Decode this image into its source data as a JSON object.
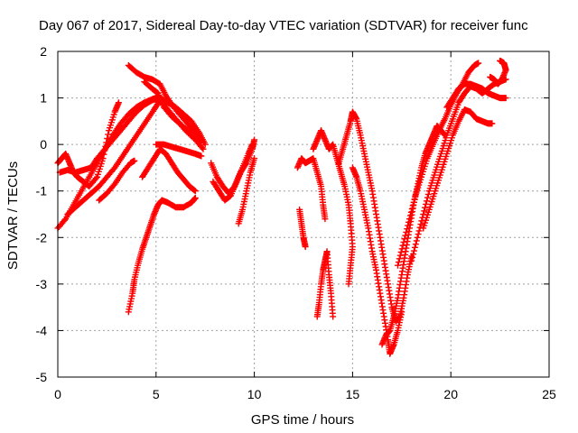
{
  "chart_data": {
    "type": "scatter",
    "title": "Day 067 of 2017, Sidereal Day-to-day VTEC variation (SDTVAR) for receiver func",
    "xlabel": "GPS time / hours",
    "ylabel": "SDTVAR / TECUs",
    "xlim": [
      0,
      25
    ],
    "ylim": [
      -5,
      2
    ],
    "xticks": [
      "0",
      "5",
      "10",
      "15",
      "20",
      "25"
    ],
    "yticks": [
      "-5",
      "-4",
      "-3",
      "-2",
      "-1",
      "0",
      "1",
      "2"
    ],
    "grid": true,
    "marker": "plus",
    "color": "#ff0000",
    "series": [
      {
        "points": [
          [
            0.0,
            -1.8
          ],
          [
            0.4,
            -1.6
          ],
          [
            0.8,
            -1.3
          ],
          [
            1.2,
            -1.0
          ],
          [
            1.6,
            -0.7
          ],
          [
            2.0,
            -0.4
          ],
          [
            2.4,
            -0.1
          ],
          [
            2.8,
            0.2
          ],
          [
            3.2,
            0.45
          ],
          [
            3.6,
            0.65
          ],
          [
            4.0,
            0.8
          ],
          [
            4.4,
            0.9
          ],
          [
            4.8,
            0.97
          ],
          [
            5.0,
            1.0
          ],
          [
            5.3,
            0.9
          ],
          [
            5.7,
            0.7
          ],
          [
            6.1,
            0.5
          ],
          [
            6.5,
            0.3
          ],
          [
            7.0,
            0.1
          ],
          [
            7.4,
            -0.1
          ]
        ]
      },
      {
        "points": [
          [
            0.0,
            -0.4
          ],
          [
            0.2,
            -0.3
          ],
          [
            0.4,
            -0.2
          ],
          [
            0.6,
            -0.4
          ],
          [
            0.8,
            -0.6
          ],
          [
            1.0,
            -0.7
          ],
          [
            1.3,
            -0.8
          ],
          [
            1.6,
            -0.9
          ],
          [
            2.0,
            -0.7
          ],
          [
            2.3,
            -0.3
          ],
          [
            2.6,
            0.3
          ],
          [
            2.9,
            0.7
          ],
          [
            3.1,
            0.9
          ]
        ]
      },
      {
        "points": [
          [
            0.1,
            -0.6
          ],
          [
            0.5,
            -0.55
          ],
          [
            0.9,
            -0.6
          ],
          [
            1.3,
            -0.55
          ],
          [
            1.7,
            -0.5
          ],
          [
            2.0,
            -0.3
          ],
          [
            2.4,
            -0.1
          ],
          [
            2.8,
            0.1
          ],
          [
            3.2,
            0.3
          ],
          [
            3.6,
            0.5
          ],
          [
            4.0,
            0.7
          ],
          [
            4.4,
            0.85
          ],
          [
            4.8,
            0.95
          ],
          [
            5.2,
            1.0
          ],
          [
            5.6,
            0.9
          ],
          [
            6.0,
            0.8
          ],
          [
            6.4,
            0.65
          ],
          [
            6.8,
            0.5
          ],
          [
            7.2,
            0.25
          ],
          [
            7.5,
            0.0
          ]
        ]
      },
      {
        "points": [
          [
            0.5,
            -1.5
          ],
          [
            0.9,
            -1.35
          ],
          [
            1.3,
            -1.2
          ],
          [
            1.7,
            -1.05
          ],
          [
            2.1,
            -0.9
          ],
          [
            2.5,
            -0.7
          ],
          [
            2.9,
            -0.5
          ],
          [
            3.3,
            -0.25
          ],
          [
            3.7,
            0.0
          ],
          [
            4.1,
            0.25
          ],
          [
            4.5,
            0.5
          ],
          [
            4.9,
            0.75
          ],
          [
            5.2,
            0.95
          ]
        ]
      },
      {
        "points": [
          [
            3.6,
            1.7
          ],
          [
            4.0,
            1.55
          ],
          [
            4.4,
            1.45
          ],
          [
            4.8,
            1.4
          ],
          [
            5.2,
            1.3
          ],
          [
            5.5,
            1.05
          ],
          [
            5.9,
            0.8
          ],
          [
            6.3,
            0.6
          ],
          [
            6.7,
            0.4
          ],
          [
            7.0,
            0.25
          ],
          [
            7.3,
            0.05
          ]
        ]
      },
      {
        "points": [
          [
            4.4,
            1.35
          ],
          [
            4.8,
            1.2
          ],
          [
            5.1,
            1.1
          ],
          [
            5.4,
            0.8
          ],
          [
            5.8,
            0.6
          ],
          [
            6.2,
            0.45
          ],
          [
            6.6,
            0.3
          ],
          [
            7.0,
            0.1
          ]
        ]
      },
      {
        "points": [
          [
            5.0,
            0.0
          ],
          [
            5.4,
            0.0
          ],
          [
            5.8,
            -0.05
          ],
          [
            6.2,
            -0.1
          ],
          [
            6.6,
            -0.15
          ],
          [
            7.0,
            -0.2
          ],
          [
            7.3,
            -0.25
          ]
        ]
      },
      {
        "points": [
          [
            2.1,
            -1.2
          ],
          [
            2.5,
            -1.05
          ],
          [
            2.9,
            -0.85
          ],
          [
            3.3,
            -0.6
          ],
          [
            3.7,
            -0.4
          ],
          [
            3.9,
            -0.35
          ]
        ]
      },
      {
        "points": [
          [
            4.3,
            -0.7
          ],
          [
            4.6,
            -0.5
          ],
          [
            4.9,
            -0.3
          ],
          [
            5.2,
            -0.1
          ],
          [
            5.5,
            -0.2
          ],
          [
            5.8,
            -0.4
          ],
          [
            6.1,
            -0.6
          ],
          [
            6.4,
            -0.75
          ],
          [
            6.7,
            -0.9
          ],
          [
            7.0,
            -1.0
          ]
        ]
      },
      {
        "points": [
          [
            3.6,
            -3.6
          ],
          [
            3.8,
            -3.2
          ],
          [
            3.9,
            -2.9
          ],
          [
            4.1,
            -2.55
          ],
          [
            4.3,
            -2.25
          ],
          [
            4.5,
            -2.0
          ],
          [
            4.7,
            -1.75
          ],
          [
            4.9,
            -1.5
          ],
          [
            5.1,
            -1.3
          ],
          [
            5.3,
            -1.2
          ],
          [
            5.6,
            -1.25
          ],
          [
            6.0,
            -1.35
          ],
          [
            6.4,
            -1.35
          ],
          [
            6.8,
            -1.25
          ],
          [
            7.0,
            -1.15
          ]
        ]
      },
      {
        "points": [
          [
            7.8,
            -0.4
          ],
          [
            8.1,
            -0.7
          ],
          [
            8.4,
            -0.9
          ],
          [
            8.7,
            -1.05
          ],
          [
            9.0,
            -0.9
          ],
          [
            9.3,
            -0.6
          ],
          [
            9.6,
            -0.4
          ],
          [
            9.9,
            -0.1
          ],
          [
            10.0,
            0.1
          ]
        ]
      },
      {
        "points": [
          [
            7.9,
            -0.8
          ],
          [
            8.2,
            -1.0
          ],
          [
            8.5,
            -1.2
          ],
          [
            8.8,
            -1.1
          ],
          [
            9.1,
            -0.8
          ],
          [
            9.4,
            -0.5
          ],
          [
            9.7,
            -0.2
          ],
          [
            9.9,
            0.0
          ]
        ]
      },
      {
        "points": [
          [
            9.2,
            -1.7
          ],
          [
            9.4,
            -1.4
          ],
          [
            9.6,
            -1.0
          ],
          [
            9.8,
            -0.6
          ],
          [
            10.0,
            -0.3
          ]
        ]
      },
      {
        "points": [
          [
            12.2,
            -0.5
          ],
          [
            12.4,
            -0.3
          ],
          [
            12.6,
            -0.4
          ],
          [
            12.8,
            -0.35
          ],
          [
            13.0,
            -0.3
          ],
          [
            13.2,
            -0.6
          ],
          [
            13.4,
            -0.9
          ],
          [
            13.5,
            -1.3
          ],
          [
            13.6,
            -1.6
          ]
        ]
      },
      {
        "points": [
          [
            12.3,
            -1.4
          ],
          [
            12.4,
            -1.7
          ],
          [
            12.5,
            -2.0
          ],
          [
            12.6,
            -2.2
          ]
        ]
      },
      {
        "points": [
          [
            13.2,
            -3.7
          ],
          [
            13.3,
            -3.4
          ],
          [
            13.4,
            -3.0
          ],
          [
            13.5,
            -2.7
          ],
          [
            13.6,
            -2.5
          ],
          [
            13.7,
            -2.3
          ],
          [
            13.8,
            -2.8
          ],
          [
            13.9,
            -3.2
          ],
          [
            14.0,
            -3.7
          ]
        ]
      },
      {
        "points": [
          [
            13.0,
            -0.1
          ],
          [
            13.2,
            0.1
          ],
          [
            13.4,
            0.3
          ],
          [
            13.6,
            0.1
          ],
          [
            13.8,
            -0.1
          ],
          [
            14.0,
            0.0
          ],
          [
            14.2,
            -0.3
          ],
          [
            14.4,
            -0.6
          ],
          [
            14.6,
            -0.9
          ],
          [
            14.8,
            -1.3
          ],
          [
            14.9,
            -1.7
          ],
          [
            15.0,
            -2.2
          ],
          [
            14.9,
            -2.6
          ],
          [
            14.8,
            -3.0
          ]
        ]
      },
      {
        "points": [
          [
            14.3,
            -0.4
          ],
          [
            14.5,
            -0.1
          ],
          [
            14.7,
            0.2
          ],
          [
            14.9,
            0.5
          ],
          [
            15.0,
            0.7
          ],
          [
            15.2,
            0.55
          ],
          [
            15.4,
            0.2
          ],
          [
            15.6,
            -0.2
          ],
          [
            15.8,
            -0.6
          ],
          [
            16.0,
            -1.0
          ],
          [
            16.2,
            -1.5
          ],
          [
            16.4,
            -2.0
          ],
          [
            16.6,
            -2.5
          ],
          [
            16.8,
            -3.0
          ],
          [
            17.0,
            -3.5
          ],
          [
            17.2,
            -3.8
          ],
          [
            17.4,
            -3.7
          ],
          [
            17.6,
            -3.3
          ],
          [
            17.8,
            -2.8
          ],
          [
            18.0,
            -2.4
          ]
        ]
      },
      {
        "points": [
          [
            15.0,
            -0.5
          ],
          [
            15.2,
            -0.7
          ],
          [
            15.4,
            -1.0
          ],
          [
            15.6,
            -1.4
          ],
          [
            15.8,
            -1.8
          ],
          [
            16.0,
            -2.3
          ],
          [
            16.2,
            -2.7
          ],
          [
            16.4,
            -3.2
          ],
          [
            16.6,
            -3.7
          ],
          [
            16.8,
            -4.2
          ],
          [
            16.9,
            -4.5
          ],
          [
            17.1,
            -4.3
          ],
          [
            17.3,
            -4.0
          ],
          [
            17.5,
            -3.6
          ]
        ]
      },
      {
        "points": [
          [
            16.5,
            -4.3
          ],
          [
            16.7,
            -4.1
          ],
          [
            16.9,
            -4.0
          ],
          [
            17.1,
            -3.7
          ],
          [
            17.3,
            -3.3
          ],
          [
            17.5,
            -2.8
          ],
          [
            17.7,
            -2.3
          ],
          [
            17.9,
            -1.8
          ],
          [
            18.1,
            -1.3
          ],
          [
            18.3,
            -0.9
          ],
          [
            18.5,
            -0.5
          ],
          [
            18.7,
            -0.2
          ],
          [
            18.9,
            0.0
          ],
          [
            19.1,
            0.2
          ],
          [
            19.3,
            0.4
          ],
          [
            19.5,
            0.3
          ],
          [
            19.7,
            0.2
          ]
        ]
      },
      {
        "points": [
          [
            17.3,
            -2.6
          ],
          [
            17.6,
            -2.1
          ],
          [
            17.9,
            -1.6
          ],
          [
            18.2,
            -1.1
          ],
          [
            18.5,
            -0.7
          ],
          [
            18.8,
            -0.3
          ],
          [
            19.1,
            0.0
          ],
          [
            19.4,
            0.3
          ],
          [
            19.7,
            0.55
          ],
          [
            20.0,
            0.85
          ],
          [
            20.3,
            1.1
          ],
          [
            20.6,
            1.3
          ],
          [
            20.9,
            1.55
          ],
          [
            21.2,
            1.7
          ],
          [
            21.4,
            1.75
          ]
        ]
      },
      {
        "points": [
          [
            18.0,
            -2.5
          ],
          [
            18.3,
            -2.0
          ],
          [
            18.6,
            -1.5
          ],
          [
            18.9,
            -1.0
          ],
          [
            19.2,
            -0.6
          ],
          [
            19.5,
            -0.2
          ],
          [
            19.8,
            0.2
          ],
          [
            20.1,
            0.55
          ],
          [
            20.4,
            0.9
          ],
          [
            20.7,
            1.1
          ],
          [
            21.0,
            1.25
          ],
          [
            21.3,
            1.2
          ],
          [
            21.6,
            1.1
          ],
          [
            21.9,
            1.2
          ],
          [
            22.2,
            1.3
          ],
          [
            22.5,
            1.35
          ],
          [
            22.8,
            1.4
          ]
        ]
      },
      {
        "points": [
          [
            18.6,
            -1.8
          ],
          [
            18.9,
            -1.4
          ],
          [
            19.2,
            -1.0
          ],
          [
            19.5,
            -0.6
          ],
          [
            19.8,
            -0.2
          ],
          [
            20.1,
            0.2
          ],
          [
            20.4,
            0.5
          ],
          [
            20.7,
            0.75
          ],
          [
            21.0,
            0.7
          ],
          [
            21.3,
            0.55
          ],
          [
            21.6,
            0.5
          ],
          [
            21.9,
            0.45
          ],
          [
            22.1,
            0.45
          ]
        ]
      },
      {
        "points": [
          [
            19.8,
            0.8
          ],
          [
            20.1,
            1.0
          ],
          [
            20.4,
            1.2
          ],
          [
            20.7,
            1.3
          ],
          [
            21.0,
            1.3
          ],
          [
            21.3,
            1.25
          ],
          [
            21.6,
            1.2
          ],
          [
            21.9,
            1.1
          ],
          [
            22.2,
            1.05
          ],
          [
            22.5,
            1.0
          ],
          [
            22.8,
            1.0
          ]
        ]
      },
      {
        "points": [
          [
            22.0,
            1.45
          ],
          [
            22.2,
            1.4
          ],
          [
            22.4,
            1.3
          ],
          [
            22.6,
            1.4
          ],
          [
            22.8,
            1.6
          ],
          [
            22.7,
            1.75
          ],
          [
            22.5,
            1.8
          ]
        ]
      }
    ]
  }
}
